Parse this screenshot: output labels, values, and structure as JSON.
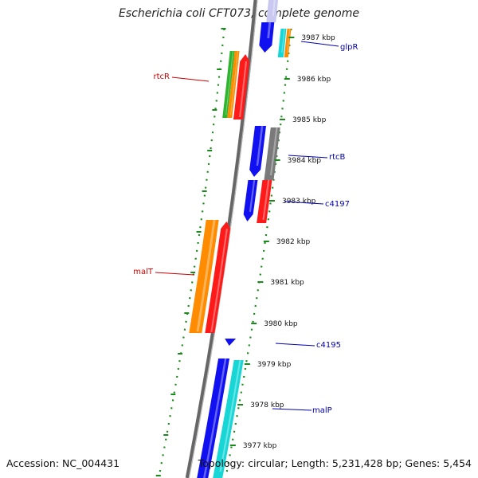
{
  "header": {
    "title": "Escherichia coli CFT073, complete genome"
  },
  "footer": {
    "accession": "Accession: NC_004431",
    "summary": "Topology: circular; Length: 5,231,428 bp; Genes: 5,454"
  },
  "colors": {
    "red": "#ff1a1a",
    "blue": "#1010f0",
    "orange": "#ff8c00",
    "green": "#2db52d",
    "cyan": "#18d6d6",
    "gray": "#7a7a7a",
    "ruler": "#1a8a1a",
    "label_red": "#cc0000",
    "label_blue": "#0000b0"
  },
  "ticks": [
    "3987 kbp",
    "3986 kbp",
    "3985 kbp",
    "3984 kbp",
    "3983 kbp",
    "3982 kbp",
    "3981 kbp",
    "3980 kbp",
    "3979 kbp",
    "3978 kbp",
    "3977 kbp"
  ],
  "genes": [
    {
      "label": "glpR",
      "color": "blue"
    },
    {
      "label": "rtcR",
      "color": "red"
    },
    {
      "label": "rtcB",
      "color": "blue"
    },
    {
      "label": "c4197",
      "color": "blue"
    },
    {
      "label": "malT",
      "color": "red"
    },
    {
      "label": "c4195",
      "color": "blue"
    },
    {
      "label": "malP",
      "color": "blue"
    }
  ]
}
